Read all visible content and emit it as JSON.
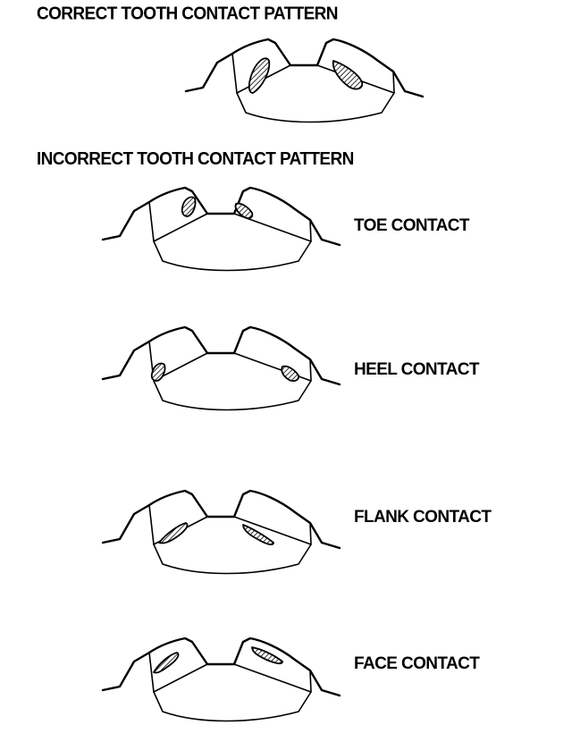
{
  "headings": {
    "correct": "CORRECT TOOTH CONTACT PATTERN",
    "incorrect": "INCORRECT TOOTH CONTACT PATTERN"
  },
  "patterns": {
    "toe": "TOE CONTACT",
    "heel": "HEEL CONTACT",
    "flank": "FLANK CONTACT",
    "face": "FACE CONTACT"
  }
}
